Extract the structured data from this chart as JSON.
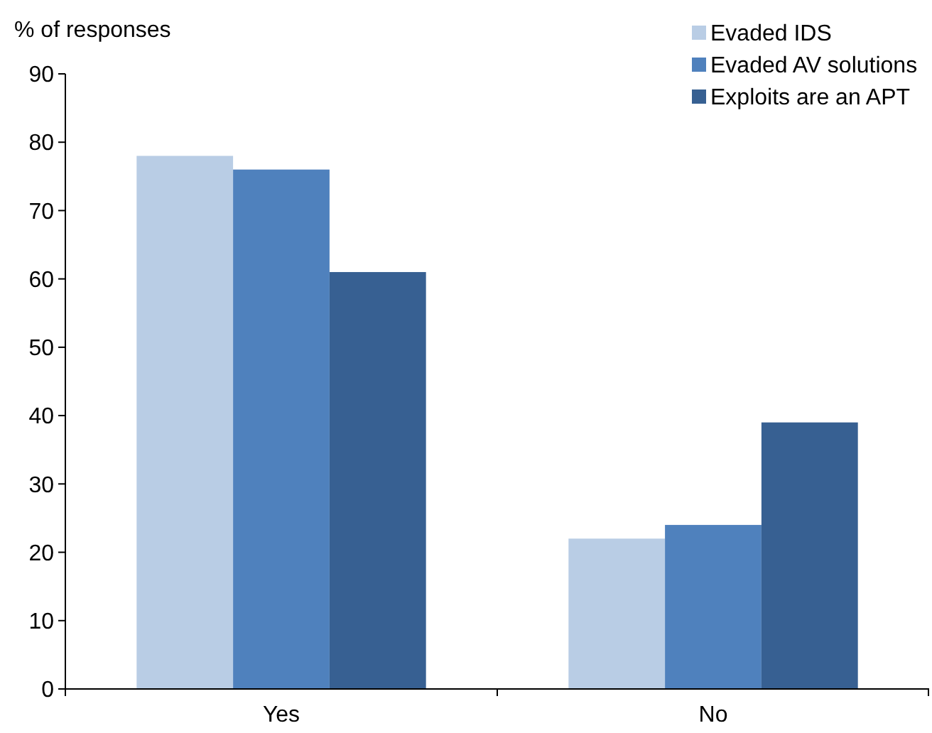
{
  "chart_data": {
    "type": "bar",
    "ylabel": "% of responses",
    "categories": [
      "Yes",
      "No"
    ],
    "series": [
      {
        "name": "Evaded IDS",
        "color": "#b9cde5",
        "values": [
          78,
          22
        ]
      },
      {
        "name": "Evaded AV solutions",
        "color": "#4f81bd",
        "values": [
          76,
          24
        ]
      },
      {
        "name": "Exploits are an APT",
        "color": "#376092",
        "values": [
          61,
          39
        ]
      }
    ],
    "ylim": [
      0,
      90
    ],
    "yticks": [
      0,
      10,
      20,
      30,
      40,
      50,
      60,
      70,
      80,
      90
    ],
    "grid": false,
    "legend": "top right"
  }
}
